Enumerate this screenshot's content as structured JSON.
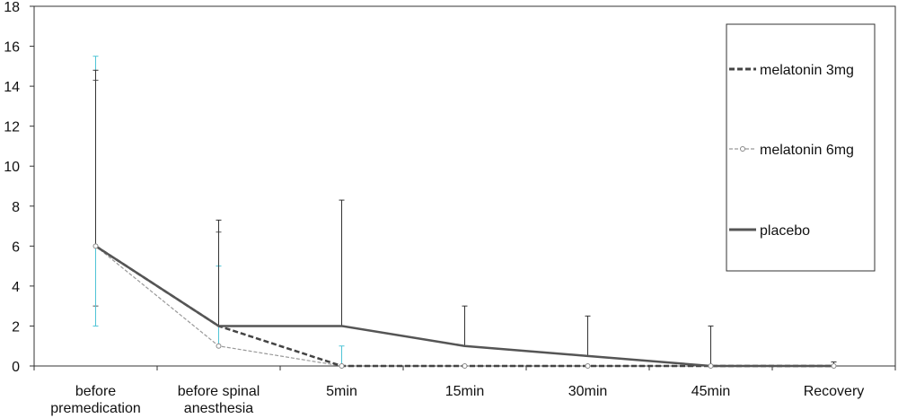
{
  "chart_data": {
    "type": "line",
    "categories": [
      "before premedication",
      "before spinal anesthesia",
      "5min",
      "15min",
      "30min",
      "45min",
      "Recovery"
    ],
    "ylim": [
      0,
      18
    ],
    "yticks": [
      0,
      2,
      4,
      6,
      8,
      10,
      12,
      14,
      16,
      18
    ],
    "grid": false,
    "legend_position": "right",
    "series": [
      {
        "name": "melatonin 3mg",
        "style": "dashed",
        "color": "#444444",
        "values": [
          6,
          2,
          0,
          0,
          0,
          0,
          0
        ],
        "error_upper": [
          14.3,
          6.7,
          null,
          null,
          null,
          null,
          null
        ],
        "error_lower": [
          3.0,
          null,
          null,
          null,
          null,
          null,
          null
        ]
      },
      {
        "name": "melatonin 6mg",
        "style": "dashed-with-circle-markers",
        "color": "#999999",
        "values": [
          6,
          1,
          0,
          0,
          0,
          0,
          0
        ],
        "error_upper": [
          15.5,
          5.0,
          1.0,
          null,
          null,
          null,
          null
        ],
        "error_lower": [
          2.0,
          null,
          null,
          null,
          null,
          null,
          null
        ]
      },
      {
        "name": "placebo",
        "style": "solid",
        "color": "#555555",
        "values": [
          6,
          2,
          2,
          1,
          0.5,
          0,
          0
        ],
        "error_upper": [
          14.8,
          7.3,
          8.3,
          3.0,
          2.5,
          2.0,
          0.2
        ],
        "error_lower": [
          null,
          null,
          null,
          null,
          null,
          null,
          null
        ]
      }
    ]
  }
}
